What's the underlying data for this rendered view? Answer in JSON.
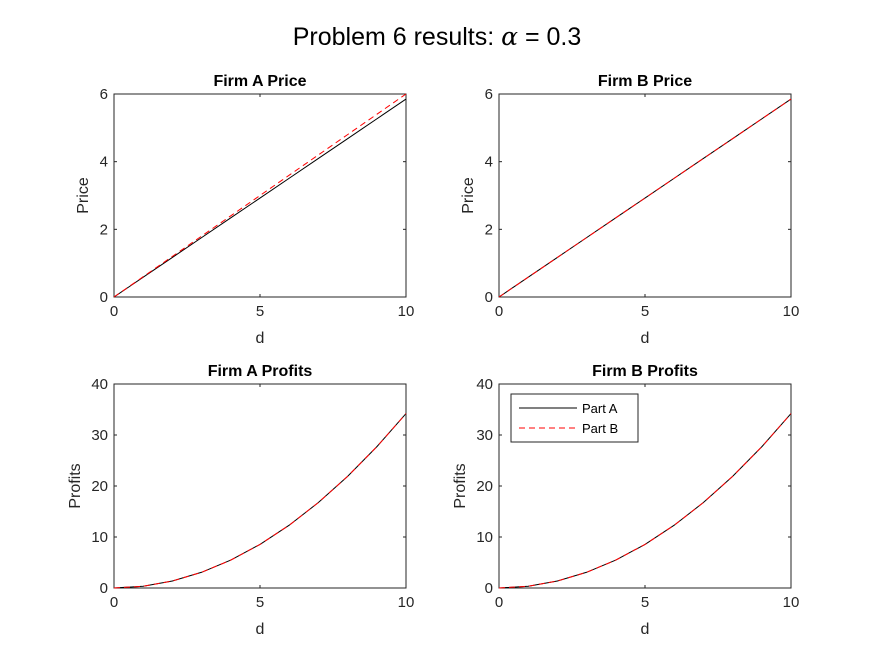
{
  "figure": {
    "title_prefix": "Problem 6 results: ",
    "alpha_symbol": "α",
    "title_suffix": " = 0.3"
  },
  "colors": {
    "part_a": "#000000",
    "part_b": "#ff0000",
    "axes": "#262626"
  },
  "legend": {
    "entries": [
      "Part A",
      "Part B"
    ],
    "location": "top-left of Firm B Profits panel"
  },
  "chart_data": [
    {
      "type": "line",
      "title": "Firm A Price",
      "xlabel": "d",
      "ylabel": "Price",
      "xlim": [
        0,
        10
      ],
      "ylim": [
        0,
        6
      ],
      "xticks": [
        0,
        5,
        10
      ],
      "yticks": [
        0,
        2,
        4,
        6
      ],
      "x": [
        0,
        1,
        2,
        3,
        4,
        5,
        6,
        7,
        8,
        9,
        10
      ],
      "series": [
        {
          "name": "Part A",
          "style": "solid",
          "values": [
            0,
            0.585,
            1.17,
            1.755,
            2.34,
            2.925,
            3.51,
            4.095,
            4.68,
            5.265,
            5.85
          ]
        },
        {
          "name": "Part B",
          "style": "dashed",
          "values": [
            0,
            0.6,
            1.2,
            1.8,
            2.4,
            3.0,
            3.6,
            4.2,
            4.8,
            5.4,
            6.0
          ]
        }
      ]
    },
    {
      "type": "line",
      "title": "Firm B Price",
      "xlabel": "d",
      "ylabel": "Price",
      "xlim": [
        0,
        10
      ],
      "ylim": [
        0,
        6
      ],
      "xticks": [
        0,
        5,
        10
      ],
      "yticks": [
        0,
        2,
        4,
        6
      ],
      "x": [
        0,
        1,
        2,
        3,
        4,
        5,
        6,
        7,
        8,
        9,
        10
      ],
      "series": [
        {
          "name": "Part A",
          "style": "solid",
          "values": [
            0,
            0.585,
            1.17,
            1.755,
            2.34,
            2.925,
            3.51,
            4.095,
            4.68,
            5.265,
            5.85
          ]
        },
        {
          "name": "Part B",
          "style": "dashed",
          "values": [
            0,
            0.585,
            1.17,
            1.755,
            2.34,
            2.925,
            3.51,
            4.095,
            4.68,
            5.265,
            5.85
          ]
        }
      ]
    },
    {
      "type": "line",
      "title": "Firm A Profits",
      "xlabel": "d",
      "ylabel": "Profits",
      "xlim": [
        0,
        10
      ],
      "ylim": [
        0,
        40
      ],
      "xticks": [
        0,
        5,
        10
      ],
      "yticks": [
        0,
        10,
        20,
        30,
        40
      ],
      "x": [
        0,
        1,
        2,
        3,
        4,
        5,
        6,
        7,
        8,
        9,
        10
      ],
      "series": [
        {
          "name": "Part A",
          "style": "solid",
          "values": [
            0,
            0.34,
            1.37,
            3.08,
            5.47,
            8.55,
            12.31,
            16.76,
            21.89,
            27.7,
            34.2
          ]
        },
        {
          "name": "Part B",
          "style": "dashed",
          "values": [
            0,
            0.34,
            1.37,
            3.08,
            5.47,
            8.55,
            12.31,
            16.76,
            21.89,
            27.7,
            34.2
          ]
        }
      ]
    },
    {
      "type": "line",
      "title": "Firm B Profits",
      "xlabel": "d",
      "ylabel": "Profits",
      "xlim": [
        0,
        10
      ],
      "ylim": [
        0,
        40
      ],
      "xticks": [
        0,
        5,
        10
      ],
      "yticks": [
        0,
        10,
        20,
        30,
        40
      ],
      "x": [
        0,
        1,
        2,
        3,
        4,
        5,
        6,
        7,
        8,
        9,
        10
      ],
      "series": [
        {
          "name": "Part A",
          "style": "solid",
          "values": [
            0,
            0.34,
            1.37,
            3.08,
            5.47,
            8.55,
            12.31,
            16.76,
            21.89,
            27.7,
            34.2
          ]
        },
        {
          "name": "Part B",
          "style": "dashed",
          "values": [
            0,
            0.34,
            1.37,
            3.08,
            5.47,
            8.55,
            12.31,
            16.76,
            21.89,
            27.7,
            34.2
          ]
        }
      ]
    }
  ]
}
